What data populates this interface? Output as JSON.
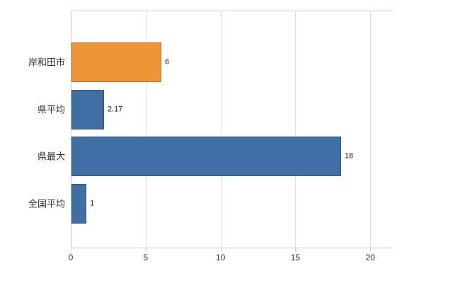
{
  "chart_data": {
    "type": "bar",
    "orientation": "horizontal",
    "title": "",
    "xlabel": "",
    "ylabel": "",
    "categories": [
      "岸和田市",
      "県平均",
      "県最大",
      "全国平均"
    ],
    "values": [
      6,
      2.17,
      18,
      1
    ],
    "value_labels": [
      "6",
      "2.17",
      "18",
      "1"
    ],
    "bar_colors": [
      "#F0943A",
      "#3F6FA5",
      "#3F6FA5",
      "#3F6FA5"
    ],
    "xlim": [
      0,
      21.5
    ],
    "x_ticks": [
      0,
      5,
      10,
      15,
      20
    ],
    "grid": "vertical",
    "legend": "none"
  },
  "colors": {
    "background": "#FFFFFF",
    "axis": "#C9C9C9",
    "gridline": "#DEDEDE",
    "category_label": "#333333",
    "tick_label": "#333333",
    "value_label": "#222222",
    "orange_bar": "#F0943A",
    "blue_bar": "#3F6FA5"
  }
}
